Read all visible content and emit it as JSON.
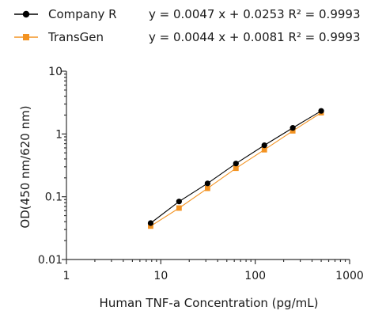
{
  "chart_data": {
    "type": "scatter",
    "title": "",
    "xlabel": "Human TNF-a Concentration (pg/mL)",
    "ylabel": "OD(450 nm/620 nm)",
    "xscale": "log",
    "yscale": "log",
    "xlim": [
      1,
      1000
    ],
    "ylim": [
      0.01,
      10
    ],
    "xticks": [
      "1",
      "10",
      "100",
      "1000"
    ],
    "yticks": [
      "0.01",
      "0.1",
      "1",
      "10"
    ],
    "grid": false,
    "legend_position": "top-left",
    "series": [
      {
        "name": "Company R",
        "equation": "y = 0.0047 x + 0.0253  R² = 0.9993",
        "color": "#000000",
        "marker": "circle",
        "x": [
          7.8,
          15.6,
          31.25,
          62.5,
          125,
          250,
          500
        ],
        "y": [
          0.038,
          0.084,
          0.163,
          0.338,
          0.66,
          1.25,
          2.33
        ]
      },
      {
        "name": "TransGen",
        "equation": "y = 0.0044 x + 0.0081  R² = 0.9993",
        "color": "#f39322",
        "marker": "square",
        "x": [
          7.8,
          15.6,
          31.25,
          62.5,
          125,
          250,
          500
        ],
        "y": [
          0.034,
          0.066,
          0.136,
          0.284,
          0.56,
          1.12,
          2.18
        ]
      }
    ]
  }
}
